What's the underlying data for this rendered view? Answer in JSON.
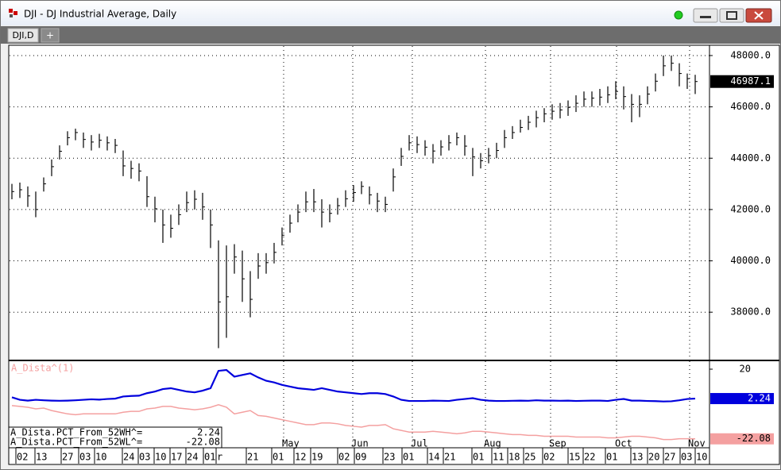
{
  "window": {
    "title": "DJI - DJ Industrial Average, Daily",
    "tab": "DJI,D",
    "tab_add": "+"
  },
  "chart_data": [
    {
      "type": "ohlc",
      "color": "#000000",
      "close": [
        42700,
        42770,
        42530,
        42000,
        43000,
        43670,
        44270,
        44800,
        45000,
        44730,
        44630,
        44700,
        44600,
        44500,
        43700,
        43600,
        43500,
        42500,
        42030,
        41400,
        41270,
        41800,
        42270,
        42400,
        42100,
        41400,
        38400,
        38600,
        40150,
        39300,
        38500,
        39800,
        39930,
        40330,
        41000,
        41470,
        41900,
        42300,
        42300,
        41900,
        41850,
        42150,
        42420,
        42660,
        42900,
        42570,
        42330,
        42200,
        43270,
        44070,
        44600,
        44530,
        44430,
        44280,
        44440,
        44600,
        44800,
        44470,
        44050,
        43900,
        44100,
        44300,
        44800,
        45000,
        45200,
        45400,
        45580,
        45730,
        45830,
        45880,
        45980,
        46140,
        46300,
        46340,
        46380,
        46470,
        46600,
        46400,
        46100,
        46100,
        46500,
        47000,
        47600,
        47700,
        47300,
        47100,
        46987.1
      ],
      "high": [
        43000,
        43050,
        42900,
        42700,
        43250,
        43950,
        44500,
        45050,
        45150,
        45000,
        44900,
        44950,
        44850,
        44750,
        44300,
        43900,
        43800,
        43300,
        42500,
        42000,
        41800,
        42200,
        42700,
        42750,
        42650,
        42000,
        40800,
        40600,
        40650,
        40400,
        39600,
        40300,
        40300,
        40700,
        41300,
        41800,
        42200,
        42700,
        42800,
        42400,
        42200,
        42450,
        42750,
        42950,
        43100,
        42900,
        42650,
        42500,
        43600,
        44400,
        44900,
        44850,
        44700,
        44550,
        44700,
        44900,
        45000,
        44900,
        44400,
        44200,
        44400,
        44600,
        45100,
        45250,
        45500,
        45650,
        45850,
        45950,
        46100,
        46150,
        46250,
        46450,
        46600,
        46600,
        46700,
        46800,
        47000,
        46800,
        46500,
        46450,
        46800,
        47300,
        48000,
        48000,
        47700,
        47300,
        47250
      ],
      "low": [
        42400,
        42450,
        42100,
        41700,
        42700,
        43300,
        43950,
        44500,
        44700,
        44400,
        44300,
        44400,
        44300,
        44200,
        43300,
        43200,
        43100,
        42100,
        41500,
        40700,
        40900,
        41400,
        41900,
        42000,
        41600,
        40500,
        36600,
        37000,
        39500,
        38400,
        37800,
        39300,
        39500,
        39900,
        40600,
        41100,
        41500,
        41900,
        41900,
        41300,
        41500,
        41800,
        42100,
        42300,
        42600,
        42200,
        41900,
        41900,
        42700,
        43700,
        44300,
        44200,
        44100,
        43800,
        44100,
        44300,
        44500,
        44100,
        43300,
        43600,
        43800,
        44000,
        44400,
        44750,
        45000,
        45100,
        45200,
        45400,
        45500,
        45550,
        45650,
        45800,
        46000,
        46000,
        46050,
        46150,
        46300,
        45900,
        45400,
        45600,
        46100,
        46600,
        47200,
        47400,
        46800,
        46700,
        46500
      ],
      "ylim": [
        36150,
        48370
      ],
      "yticks": [
        {
          "value": 38000,
          "label": "38000.0"
        },
        {
          "value": 40000,
          "label": "40000.0"
        },
        {
          "value": 42000,
          "label": "42000.0"
        },
        {
          "value": 44000,
          "label": "44000.0"
        },
        {
          "value": 46000,
          "label": "46000.0"
        },
        {
          "value": 48000,
          "label": "48000.0"
        }
      ],
      "grid": true
    },
    {
      "type": "line",
      "title": "A_Dista^(1)",
      "series": [
        {
          "name": "A_Dista.PCT_From_52WH^=",
          "color": "#0000dd",
          "values": [
            3.0,
            1.5,
            1.0,
            1.5,
            1.2,
            1.0,
            0.9,
            1.0,
            1.2,
            1.5,
            1.8,
            1.6,
            2.0,
            2.2,
            3.5,
            3.8,
            4.0,
            5.5,
            6.5,
            8.0,
            8.5,
            7.5,
            6.5,
            6.0,
            7.0,
            8.5,
            19.0,
            19.5,
            15.5,
            16.5,
            17.5,
            15.0,
            13.0,
            12.0,
            10.5,
            9.5,
            8.5,
            8.0,
            7.5,
            8.5,
            7.5,
            6.5,
            6.0,
            5.5,
            5.0,
            5.5,
            5.5,
            5.0,
            3.5,
            1.5,
            0.8,
            0.8,
            0.8,
            1.0,
            0.9,
            0.8,
            1.5,
            2.0,
            2.5,
            1.5,
            1.0,
            0.8,
            0.8,
            0.9,
            1.0,
            0.9,
            1.2,
            1.0,
            1.0,
            0.9,
            1.0,
            0.8,
            0.9,
            1.0,
            1.0,
            0.8,
            1.5,
            2.0,
            1.0,
            1.0,
            0.8,
            0.7,
            0.5,
            0.6,
            1.2,
            2.0,
            2.24
          ]
        },
        {
          "name": "A_Dista.PCT_From_52WL^=",
          "color": "#f4a0a0",
          "values": [
            -2,
            -2.5,
            -3,
            -4,
            -3.5,
            -5,
            -6,
            -7,
            -7.5,
            -7,
            -7,
            -7,
            -7,
            -7,
            -6,
            -5.5,
            -5.5,
            -4,
            -3.5,
            -2.5,
            -2.5,
            -3.5,
            -4,
            -4.5,
            -4,
            -3,
            -1.5,
            -3,
            -7,
            -6,
            -5,
            -8,
            -8.5,
            -9.5,
            -10.5,
            -11.5,
            -12.5,
            -13.5,
            -13.5,
            -12.5,
            -12.5,
            -13,
            -14,
            -14.5,
            -15,
            -14,
            -14,
            -13.5,
            -16,
            -17,
            -18,
            -18,
            -18,
            -17.5,
            -18,
            -18.5,
            -19,
            -18.5,
            -17.5,
            -17.5,
            -18,
            -18.5,
            -19,
            -19.5,
            -19.5,
            -20,
            -20,
            -20.5,
            -20.5,
            -20.5,
            -20.5,
            -21,
            -21,
            -21,
            -21,
            -21.5,
            -21.5,
            -21,
            -20.5,
            -20.5,
            -21,
            -21.5,
            -22.5,
            -22.5,
            -22,
            -22,
            -22.08
          ]
        }
      ],
      "ylim": [
        -27,
        24.8
      ],
      "yticks": [
        20
      ],
      "xticks": [
        {
          "value": 1.6,
          "label": "02"
        },
        {
          "value": 4,
          "label": "13"
        },
        {
          "value": 7.3,
          "label": "27"
        },
        {
          "value": 9.5,
          "label": "03"
        },
        {
          "value": 11.5,
          "label": "10"
        },
        {
          "value": 15,
          "label": "24"
        },
        {
          "value": 17,
          "label": "03"
        },
        {
          "value": 19,
          "label": "10"
        },
        {
          "value": 21,
          "label": "17"
        },
        {
          "value": 23,
          "label": "24"
        },
        {
          "value": 25.2,
          "label": "01"
        },
        {
          "value": 26.8,
          "label": "r"
        },
        {
          "value": 30.6,
          "label": "21"
        },
        {
          "value": 33.8,
          "label": "01"
        },
        {
          "value": 36.6,
          "label": "12"
        },
        {
          "value": 38.7,
          "label": "19"
        },
        {
          "value": 42.1,
          "label": "02"
        },
        {
          "value": 44.2,
          "label": "09"
        },
        {
          "value": 47.8,
          "label": "23"
        },
        {
          "value": 50.2,
          "label": "01"
        },
        {
          "value": 53.4,
          "label": "14"
        },
        {
          "value": 55.4,
          "label": "21"
        },
        {
          "value": 59,
          "label": "01"
        },
        {
          "value": 61.5,
          "label": "11"
        },
        {
          "value": 63.5,
          "label": "18"
        },
        {
          "value": 65.5,
          "label": "25"
        },
        {
          "value": 67.9,
          "label": "02"
        },
        {
          "value": 71.1,
          "label": "15"
        },
        {
          "value": 73,
          "label": "22"
        },
        {
          "value": 75.8,
          "label": "01"
        },
        {
          "value": 79,
          "label": "13"
        },
        {
          "value": 81.1,
          "label": "20"
        },
        {
          "value": 83.1,
          "label": "27"
        },
        {
          "value": 85.2,
          "label": "03"
        },
        {
          "value": 87.1,
          "label": "10"
        }
      ],
      "month_labels": [
        {
          "value": 34.2,
          "label": "May"
        },
        {
          "value": 42.9,
          "label": "Jun"
        },
        {
          "value": 50.4,
          "label": "Jul"
        },
        {
          "value": 59.6,
          "label": "Aug"
        },
        {
          "value": 67.8,
          "label": "Sep"
        },
        {
          "value": 76.1,
          "label": "Oct"
        },
        {
          "value": 85.3,
          "label": "Nov"
        }
      ]
    }
  ]
}
